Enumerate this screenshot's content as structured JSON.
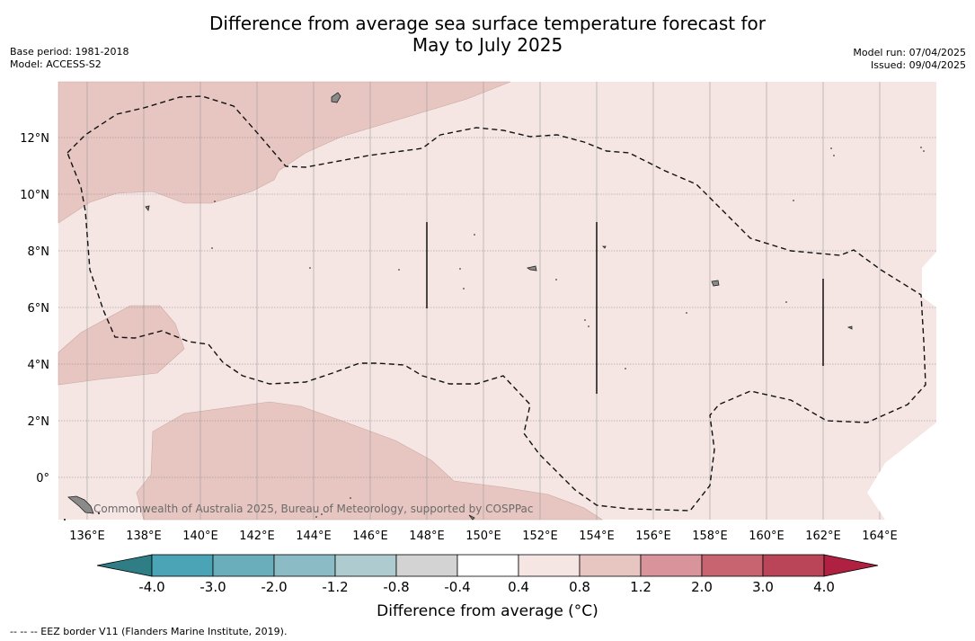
{
  "title_line1": "Difference from average sea surface temperature forecast for",
  "title_line2": "May to July 2025",
  "base_period": "Base period: 1981-2018",
  "model": "Model: ACCESS-S2",
  "model_run": "Model run: 07/04/2025",
  "issued": "Issued: 09/04/2025",
  "lon_labels": [
    "136°E",
    "138°E",
    "140°E",
    "142°E",
    "144°E",
    "146°E",
    "148°E",
    "150°E",
    "152°E",
    "154°E",
    "156°E",
    "158°E",
    "160°E",
    "162°E",
    "164°E"
  ],
  "lat_labels": [
    "12°N",
    "10°N",
    "8°N",
    "6°N",
    "4°N",
    "2°N",
    "0°"
  ],
  "colorbar": {
    "title": "Difference from average (°C)",
    "labels": [
      "-4.0",
      "-3.0",
      "-2.0",
      "-1.2",
      "-0.8",
      "-0.4",
      "0.4",
      "0.8",
      "1.2",
      "2.0",
      "3.0",
      "4.0"
    ],
    "colors": [
      "#2f7e86",
      "#4aa4b5",
      "#6aaebb",
      "#8bbcc6",
      "#aecbcf",
      "#d3d3d3",
      "#ffffff",
      "#f5e6e4",
      "#e7c6c1",
      "#d9939a",
      "#c86470",
      "#bb4558",
      "#b02040"
    ]
  },
  "copyright": "Commonwealth of Australia 2025, Bureau of Meteorology, supported by COSPPac",
  "footnote": "--  --  -- EEZ border V11 (Flanders Marine Institute, 2019)."
}
